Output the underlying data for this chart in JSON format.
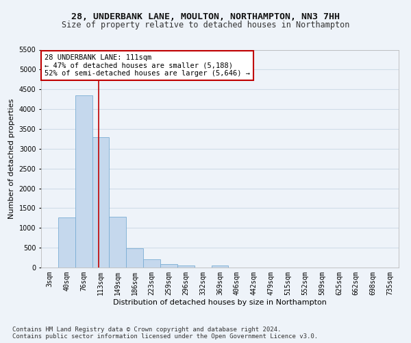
{
  "title": "28, UNDERBANK LANE, MOULTON, NORTHAMPTON, NN3 7HH",
  "subtitle": "Size of property relative to detached houses in Northampton",
  "xlabel": "Distribution of detached houses by size in Northampton",
  "ylabel": "Number of detached properties",
  "categories": [
    "3sqm",
    "40sqm",
    "76sqm",
    "113sqm",
    "149sqm",
    "186sqm",
    "223sqm",
    "259sqm",
    "296sqm",
    "332sqm",
    "369sqm",
    "406sqm",
    "442sqm",
    "479sqm",
    "515sqm",
    "552sqm",
    "589sqm",
    "625sqm",
    "662sqm",
    "698sqm",
    "735sqm"
  ],
  "bar_heights": [
    0,
    1270,
    4350,
    3300,
    1285,
    490,
    215,
    90,
    60,
    0,
    55,
    0,
    0,
    0,
    0,
    0,
    0,
    0,
    0,
    0,
    0
  ],
  "bar_color": "#c5d8ed",
  "bar_edge_color": "#7aadd4",
  "grid_color": "#d0dde8",
  "background_color": "#eef3f9",
  "vline_x": 2.88,
  "vline_color": "#c00000",
  "annotation_text": "28 UNDERBANK LANE: 111sqm\n← 47% of detached houses are smaller (5,188)\n52% of semi-detached houses are larger (5,646) →",
  "annotation_box_color": "#ffffff",
  "annotation_box_edge": "#c00000",
  "ylim": [
    0,
    5500
  ],
  "yticks": [
    0,
    500,
    1000,
    1500,
    2000,
    2500,
    3000,
    3500,
    4000,
    4500,
    5000,
    5500
  ],
  "footnote1": "Contains HM Land Registry data © Crown copyright and database right 2024.",
  "footnote2": "Contains public sector information licensed under the Open Government Licence v3.0.",
  "title_fontsize": 9.5,
  "subtitle_fontsize": 8.5,
  "axis_label_fontsize": 8,
  "tick_fontsize": 7,
  "annotation_fontsize": 7.5,
  "footnote_fontsize": 6.5
}
